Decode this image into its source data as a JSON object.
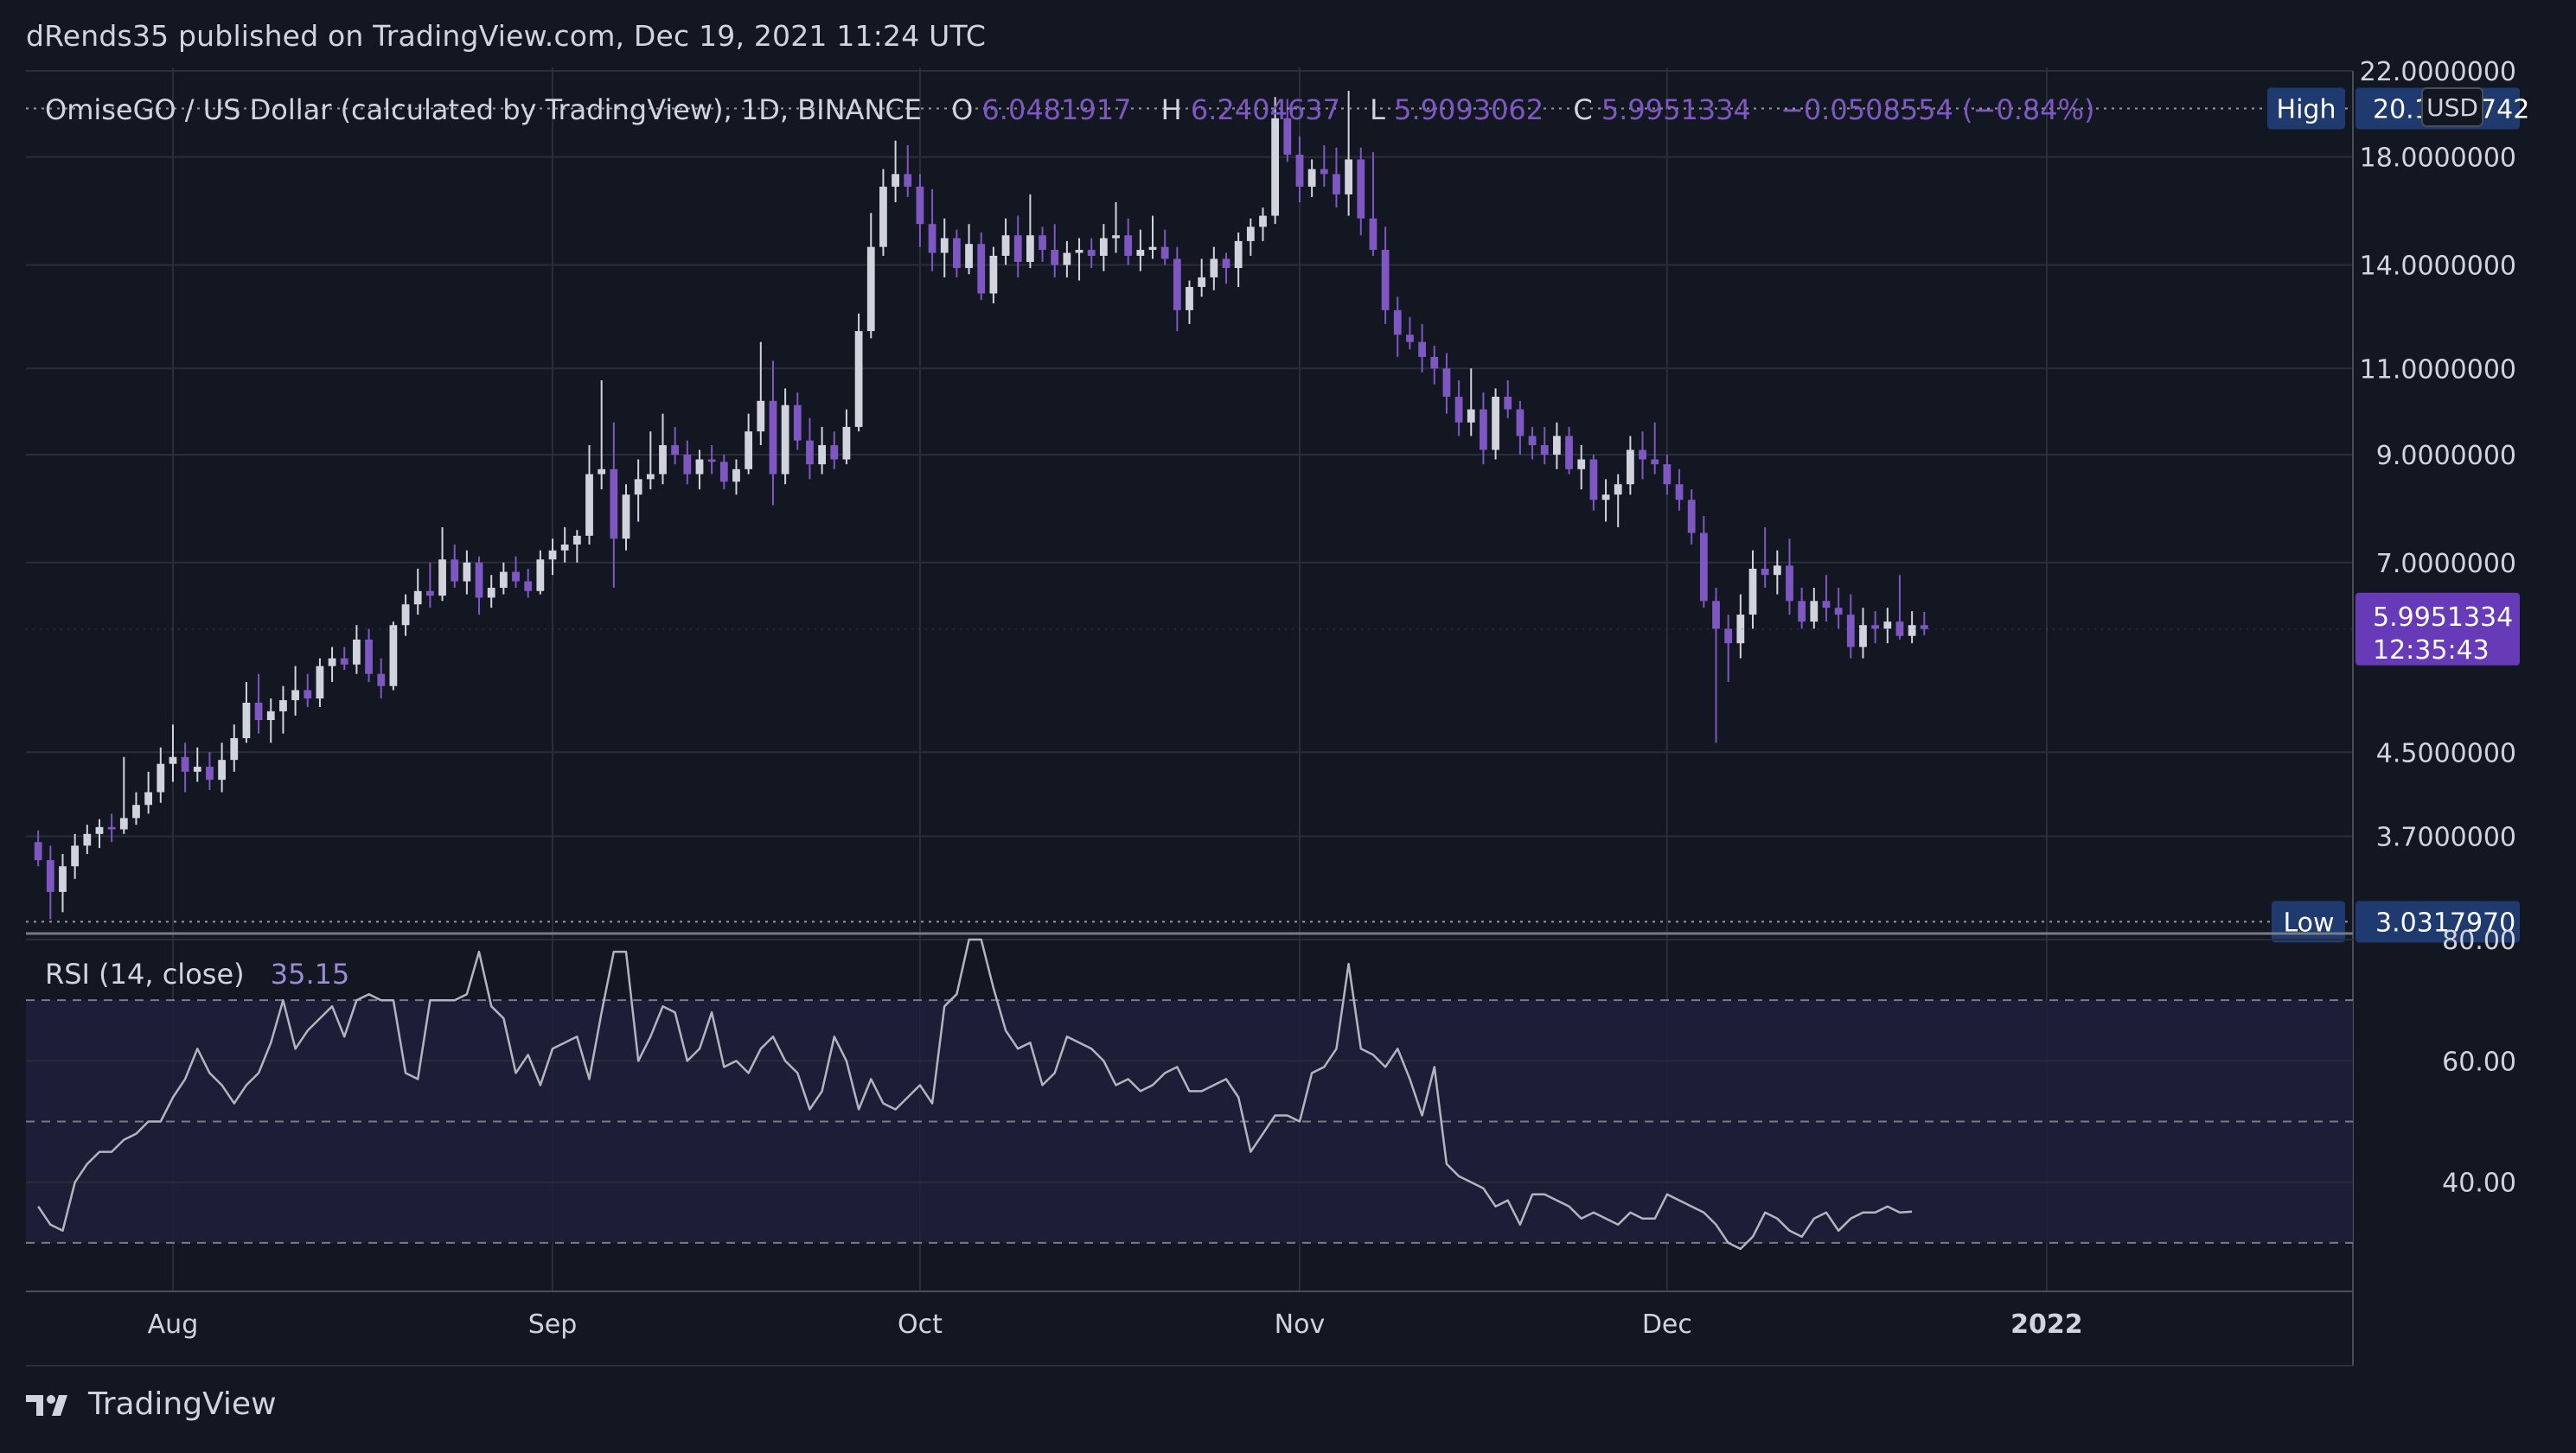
{
  "header": {
    "published_text": "dRends35 published on TradingView.com, Dec 19, 2021 11:24 UTC"
  },
  "legend": {
    "symbol": "OmiseGO / US Dollar (calculated by TradingView), 1D, BINANCE",
    "open_label": "O",
    "open_value": "6.0481917",
    "high_label": "H",
    "high_value": "6.2404637",
    "low_label": "L",
    "low_value": "5.9093062",
    "close_label": "C",
    "close_value": "5.9951334",
    "change": "−0.0508554 (−0.84%)"
  },
  "price_scale": {
    "currency_button": "USD",
    "high_label": "High",
    "high_value": "20.1577742",
    "low_label": "Low",
    "low_value": "3.0317970",
    "current_price": "5.9951334",
    "countdown": "12:35:43"
  },
  "rsi": {
    "label": "RSI (14, close)",
    "value": "35.15"
  },
  "footer": {
    "brand": "TradingView"
  },
  "colors": {
    "background": "#131722",
    "grid": "#2a2e39",
    "up_candle": "#d1d4dc",
    "down_candle": "#7e57c2",
    "accent_purple": "#673ab7",
    "label_navy": "#1e3a6e",
    "rsi_line": "#b2b5be",
    "rsi_band": "#1e1f3b",
    "text": "#d1d4dc"
  },
  "chart_data": [
    {
      "type": "candlestick",
      "title": "OmiseGO / US Dollar (calculated by TradingView), 1D, BINANCE",
      "xlabel": "",
      "ylabel": "",
      "y_scale": "log",
      "ylim": [
        2.95,
        22.0
      ],
      "y_ticks": [
        "22.0000000",
        "18.0000000",
        "14.0000000",
        "11.0000000",
        "9.0000000",
        "7.0000000",
        "4.5000000",
        "3.7000000"
      ],
      "y_tick_values": [
        22,
        18,
        14,
        11,
        9,
        7,
        4.5,
        3.7
      ],
      "x_ticks": [
        "Aug",
        "Sep",
        "Oct",
        "Nov",
        "Dec",
        "2022"
      ],
      "x_tick_dates": [
        "2021-08-01",
        "2021-09-01",
        "2021-10-01",
        "2021-11-01",
        "2021-12-01",
        "2022-01-01"
      ],
      "date_range": [
        "2021-07-20",
        "2022-01-26"
      ],
      "first_date": "2021-07-21",
      "high_line": 20.1577742,
      "low_line": 3.031797,
      "last_price": 5.9951334,
      "grid": true,
      "ohlc": [
        [
          3.65,
          3.75,
          3.45,
          3.5
        ],
        [
          3.5,
          3.62,
          3.05,
          3.25
        ],
        [
          3.25,
          3.55,
          3.1,
          3.45
        ],
        [
          3.45,
          3.72,
          3.35,
          3.62
        ],
        [
          3.62,
          3.8,
          3.55,
          3.72
        ],
        [
          3.72,
          3.85,
          3.6,
          3.78
        ],
        [
          3.78,
          3.9,
          3.65,
          3.76
        ],
        [
          3.76,
          4.45,
          3.72,
          3.86
        ],
        [
          3.86,
          4.1,
          3.8,
          3.98
        ],
        [
          3.98,
          4.3,
          3.9,
          4.1
        ],
        [
          4.1,
          4.55,
          4.0,
          4.38
        ],
        [
          4.38,
          4.8,
          4.2,
          4.45
        ],
        [
          4.45,
          4.6,
          4.1,
          4.3
        ],
        [
          4.3,
          4.55,
          4.2,
          4.35
        ],
        [
          4.35,
          4.5,
          4.12,
          4.22
        ],
        [
          4.22,
          4.6,
          4.1,
          4.42
        ],
        [
          4.42,
          4.8,
          4.3,
          4.65
        ],
        [
          4.65,
          5.3,
          4.6,
          5.05
        ],
        [
          5.05,
          5.4,
          4.7,
          4.85
        ],
        [
          4.85,
          5.1,
          4.6,
          4.95
        ],
        [
          4.95,
          5.25,
          4.7,
          5.08
        ],
        [
          5.08,
          5.5,
          4.9,
          5.2
        ],
        [
          5.2,
          5.4,
          5.0,
          5.1
        ],
        [
          5.1,
          5.6,
          5.0,
          5.5
        ],
        [
          5.5,
          5.75,
          5.3,
          5.6
        ],
        [
          5.6,
          5.75,
          5.45,
          5.52
        ],
        [
          5.52,
          6.05,
          5.4,
          5.85
        ],
        [
          5.85,
          6.0,
          5.3,
          5.4
        ],
        [
          5.4,
          5.6,
          5.1,
          5.25
        ],
        [
          5.25,
          6.1,
          5.2,
          6.05
        ],
        [
          6.05,
          6.5,
          5.9,
          6.35
        ],
        [
          6.35,
          6.9,
          6.2,
          6.55
        ],
        [
          6.55,
          7.0,
          6.3,
          6.48
        ],
        [
          6.48,
          7.6,
          6.4,
          7.05
        ],
        [
          7.05,
          7.3,
          6.6,
          6.7
        ],
        [
          6.7,
          7.2,
          6.5,
          7.0
        ],
        [
          7.0,
          7.1,
          6.2,
          6.45
        ],
        [
          6.45,
          6.8,
          6.3,
          6.6
        ],
        [
          6.6,
          7.0,
          6.5,
          6.85
        ],
        [
          6.85,
          7.1,
          6.6,
          6.7
        ],
        [
          6.7,
          6.9,
          6.45,
          6.55
        ],
        [
          6.55,
          7.2,
          6.5,
          7.05
        ],
        [
          7.05,
          7.4,
          6.8,
          7.2
        ],
        [
          7.2,
          7.6,
          7.0,
          7.3
        ],
        [
          7.3,
          7.55,
          7.0,
          7.45
        ],
        [
          7.45,
          9.2,
          7.3,
          8.6
        ],
        [
          8.6,
          10.7,
          8.3,
          8.7
        ],
        [
          8.7,
          9.7,
          6.6,
          7.4
        ],
        [
          7.4,
          8.4,
          7.2,
          8.2
        ],
        [
          8.2,
          8.9,
          7.7,
          8.5
        ],
        [
          8.5,
          9.5,
          8.3,
          8.6
        ],
        [
          8.6,
          9.9,
          8.4,
          9.2
        ],
        [
          9.2,
          9.6,
          8.8,
          9.0
        ],
        [
          9.0,
          9.3,
          8.4,
          8.6
        ],
        [
          8.6,
          9.1,
          8.3,
          8.9
        ],
        [
          8.9,
          9.2,
          8.6,
          8.85
        ],
        [
          8.85,
          9.0,
          8.3,
          8.45
        ],
        [
          8.45,
          8.9,
          8.2,
          8.7
        ],
        [
          8.7,
          9.9,
          8.6,
          9.5
        ],
        [
          9.5,
          11.7,
          9.2,
          10.2
        ],
        [
          10.2,
          11.2,
          8.0,
          8.6
        ],
        [
          8.6,
          10.5,
          8.4,
          10.1
        ],
        [
          10.1,
          10.4,
          9.1,
          9.3
        ],
        [
          9.3,
          9.8,
          8.5,
          8.8
        ],
        [
          8.8,
          9.6,
          8.6,
          9.2
        ],
        [
          9.2,
          9.5,
          8.7,
          8.9
        ],
        [
          8.9,
          10.0,
          8.8,
          9.6
        ],
        [
          9.6,
          12.5,
          9.5,
          12.0
        ],
        [
          12.0,
          15.8,
          11.8,
          14.6
        ],
        [
          14.6,
          17.5,
          14.3,
          16.8
        ],
        [
          16.8,
          18.7,
          16.2,
          17.3
        ],
        [
          17.3,
          18.5,
          16.4,
          16.8
        ],
        [
          16.8,
          17.3,
          14.6,
          15.4
        ],
        [
          15.4,
          16.7,
          13.8,
          14.4
        ],
        [
          14.4,
          15.6,
          13.6,
          14.9
        ],
        [
          14.9,
          15.2,
          13.6,
          13.9
        ],
        [
          13.9,
          15.4,
          13.7,
          14.7
        ],
        [
          14.7,
          15.1,
          12.9,
          13.1
        ],
        [
          13.1,
          14.6,
          12.8,
          14.3
        ],
        [
          14.3,
          15.6,
          14.0,
          15.0
        ],
        [
          15.0,
          15.7,
          13.6,
          14.1
        ],
        [
          14.1,
          16.5,
          13.9,
          15.0
        ],
        [
          15.0,
          15.3,
          14.1,
          14.5
        ],
        [
          14.5,
          15.4,
          13.6,
          14.0
        ],
        [
          14.0,
          14.8,
          13.6,
          14.4
        ],
        [
          14.4,
          14.9,
          13.5,
          14.5
        ],
        [
          14.5,
          14.9,
          13.9,
          14.3
        ],
        [
          14.3,
          15.4,
          13.8,
          14.9
        ],
        [
          14.9,
          16.2,
          14.4,
          15.0
        ],
        [
          15.0,
          15.6,
          14.0,
          14.3
        ],
        [
          14.3,
          15.2,
          13.8,
          14.5
        ],
        [
          14.5,
          15.7,
          14.2,
          14.6
        ],
        [
          14.6,
          15.2,
          14.0,
          14.2
        ],
        [
          14.2,
          14.6,
          12.0,
          12.6
        ],
        [
          12.6,
          13.5,
          12.2,
          13.3
        ],
        [
          13.3,
          14.2,
          13.0,
          13.6
        ],
        [
          13.6,
          14.6,
          13.2,
          14.2
        ],
        [
          14.2,
          14.4,
          13.4,
          13.9
        ],
        [
          13.9,
          15.1,
          13.3,
          14.8
        ],
        [
          14.8,
          15.6,
          14.3,
          15.3
        ],
        [
          15.3,
          16.0,
          14.8,
          15.7
        ],
        [
          15.7,
          20.7,
          15.4,
          19.7
        ],
        [
          19.7,
          20.6,
          17.8,
          18.1
        ],
        [
          18.1,
          18.9,
          16.2,
          16.8
        ],
        [
          16.8,
          17.9,
          16.4,
          17.5
        ],
        [
          17.5,
          18.5,
          16.8,
          17.3
        ],
        [
          17.3,
          18.4,
          16.0,
          16.5
        ],
        [
          16.5,
          21.0,
          15.7,
          17.9
        ],
        [
          17.9,
          18.4,
          15.0,
          15.6
        ],
        [
          15.6,
          18.2,
          14.3,
          14.5
        ],
        [
          14.5,
          15.3,
          12.2,
          12.6
        ],
        [
          12.6,
          13.0,
          11.3,
          11.9
        ],
        [
          11.9,
          12.4,
          11.5,
          11.7
        ],
        [
          11.7,
          12.2,
          10.9,
          11.3
        ],
        [
          11.3,
          11.6,
          10.6,
          11.0
        ],
        [
          11.0,
          11.4,
          9.9,
          10.3
        ],
        [
          10.3,
          10.7,
          9.4,
          9.7
        ],
        [
          9.7,
          11.0,
          9.4,
          10.0
        ],
        [
          10.0,
          10.4,
          8.8,
          9.1
        ],
        [
          9.1,
          10.5,
          8.9,
          10.3
        ],
        [
          10.3,
          10.7,
          9.8,
          10.0
        ],
        [
          10.0,
          10.2,
          9.0,
          9.4
        ],
        [
          9.4,
          9.6,
          8.9,
          9.2
        ],
        [
          9.2,
          9.6,
          8.8,
          9.0
        ],
        [
          9.0,
          9.7,
          8.7,
          9.4
        ],
        [
          9.4,
          9.6,
          8.6,
          8.7
        ],
        [
          8.7,
          9.2,
          8.3,
          8.9
        ],
        [
          8.9,
          9.0,
          7.9,
          8.1
        ],
        [
          8.1,
          8.5,
          7.7,
          8.2
        ],
        [
          8.2,
          8.6,
          7.6,
          8.4
        ],
        [
          8.4,
          9.4,
          8.2,
          9.1
        ],
        [
          9.1,
          9.5,
          8.5,
          8.9
        ],
        [
          8.9,
          9.7,
          8.6,
          8.8
        ],
        [
          8.8,
          9.0,
          8.2,
          8.4
        ],
        [
          8.4,
          8.7,
          7.9,
          8.1
        ],
        [
          8.1,
          8.3,
          7.3,
          7.5
        ],
        [
          7.5,
          7.8,
          6.3,
          6.4
        ],
        [
          6.4,
          6.6,
          4.6,
          6.0
        ],
        [
          6.0,
          6.2,
          5.3,
          5.8
        ],
        [
          5.8,
          6.5,
          5.6,
          6.2
        ],
        [
          6.2,
          7.2,
          6.0,
          6.9
        ],
        [
          6.9,
          7.6,
          6.6,
          6.8
        ],
        [
          6.8,
          7.2,
          6.5,
          6.95
        ],
        [
          6.95,
          7.4,
          6.2,
          6.4
        ],
        [
          6.4,
          6.6,
          6.0,
          6.1
        ],
        [
          6.1,
          6.6,
          6.0,
          6.4
        ],
        [
          6.4,
          6.8,
          6.1,
          6.3
        ],
        [
          6.3,
          6.6,
          6.0,
          6.2
        ],
        [
          6.2,
          6.5,
          5.6,
          5.75
        ],
        [
          5.75,
          6.3,
          5.6,
          6.05
        ],
        [
          6.05,
          6.25,
          5.8,
          6.0
        ],
        [
          6.0,
          6.3,
          5.8,
          6.1
        ],
        [
          6.1,
          6.8,
          5.85,
          5.9
        ],
        [
          5.9,
          6.25,
          5.8,
          6.05
        ],
        [
          6.05,
          6.24,
          5.91,
          5.995
        ]
      ]
    },
    {
      "type": "line",
      "title": "RSI (14, close)",
      "xlabel": "",
      "ylabel": "",
      "ylim": [
        22,
        81
      ],
      "y_ticks": [
        "80.00",
        "60.00",
        "40.00"
      ],
      "y_tick_values": [
        80,
        60,
        40
      ],
      "bands": [
        30,
        50,
        70
      ],
      "grid": true,
      "current_value": 35.15,
      "values": [
        36,
        33,
        32,
        40,
        43,
        45,
        45,
        47,
        48,
        50,
        50,
        54,
        57,
        62,
        58,
        56,
        53,
        56,
        58,
        63,
        70,
        62,
        65,
        67,
        69,
        64,
        70,
        71,
        70,
        70,
        58,
        57,
        70,
        70,
        70,
        71,
        78,
        69,
        67,
        58,
        61,
        56,
        62,
        63,
        64,
        57,
        68,
        78,
        78,
        60,
        64,
        69,
        68,
        60,
        62,
        68,
        59,
        60,
        58,
        62,
        64,
        60,
        58,
        52,
        55,
        64,
        60,
        52,
        57,
        53,
        52,
        54,
        56,
        53,
        69,
        71,
        80,
        80,
        72,
        65,
        62,
        63,
        56,
        58,
        64,
        63,
        62,
        60,
        56,
        57,
        55,
        56,
        58,
        59,
        55,
        55,
        56,
        57,
        54,
        45,
        48,
        51,
        51,
        50,
        58,
        59,
        62,
        76,
        62,
        61,
        59,
        62,
        57,
        51,
        59,
        43,
        41,
        40,
        39,
        36,
        37,
        33,
        38,
        38,
        37,
        36,
        34,
        35,
        34,
        33,
        35,
        34,
        34,
        38,
        37,
        36,
        35,
        33,
        30,
        29,
        31,
        35,
        34,
        32,
        31,
        34,
        35,
        32,
        34,
        35,
        35,
        36,
        35,
        35.15
      ]
    }
  ]
}
